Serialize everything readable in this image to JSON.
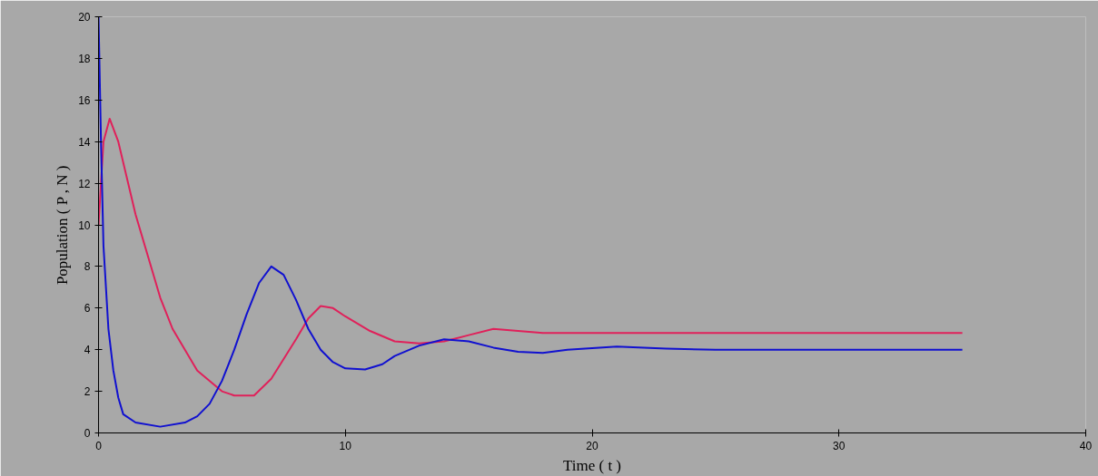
{
  "chart_data": {
    "type": "line",
    "xlabel": "Time ( t )",
    "ylabel": "Population ( P , N )",
    "xlim": [
      0,
      40
    ],
    "ylim": [
      0,
      20
    ],
    "xticks": [
      0,
      10,
      20,
      30,
      40
    ],
    "yticks": [
      0,
      2,
      4,
      6,
      8,
      10,
      12,
      14,
      16,
      18,
      20
    ],
    "grid": false,
    "marker": "none",
    "line_style": "solid",
    "series": [
      {
        "color": "#e0205a",
        "x": [
          0,
          0.2,
          0.45,
          0.8,
          1.5,
          2.5,
          3,
          4,
          5,
          5.5,
          6.3,
          7,
          8,
          8.5,
          9,
          9.5,
          10,
          11,
          12,
          13,
          14,
          15,
          16,
          17,
          18,
          20,
          25,
          35
        ],
        "values": [
          10,
          14,
          15.1,
          14,
          10.5,
          6.5,
          5,
          3,
          2,
          1.8,
          1.8,
          2.6,
          4.5,
          5.5,
          6.1,
          6,
          5.6,
          4.9,
          4.4,
          4.3,
          4.4,
          4.7,
          5,
          4.9,
          4.8,
          4.8,
          4.8,
          4.8
        ]
      },
      {
        "color": "#1010d0",
        "x": [
          0,
          0.1,
          0.2,
          0.4,
          0.6,
          0.8,
          1,
          1.5,
          2.5,
          3.5,
          4,
          4.5,
          5,
          5.5,
          6,
          6.5,
          7,
          7.5,
          8,
          8.5,
          9,
          9.5,
          10,
          10.8,
          11.5,
          12,
          13,
          14,
          15,
          16,
          17,
          18,
          19,
          21,
          23,
          25,
          35
        ],
        "values": [
          20,
          14,
          9,
          5,
          3,
          1.7,
          0.9,
          0.5,
          0.3,
          0.5,
          0.8,
          1.4,
          2.5,
          4,
          5.7,
          7.2,
          8,
          7.6,
          6.4,
          5,
          4,
          3.4,
          3.1,
          3.05,
          3.3,
          3.7,
          4.2,
          4.5,
          4.4,
          4.1,
          3.9,
          3.85,
          4,
          4.15,
          4.05,
          4,
          4
        ]
      }
    ]
  }
}
